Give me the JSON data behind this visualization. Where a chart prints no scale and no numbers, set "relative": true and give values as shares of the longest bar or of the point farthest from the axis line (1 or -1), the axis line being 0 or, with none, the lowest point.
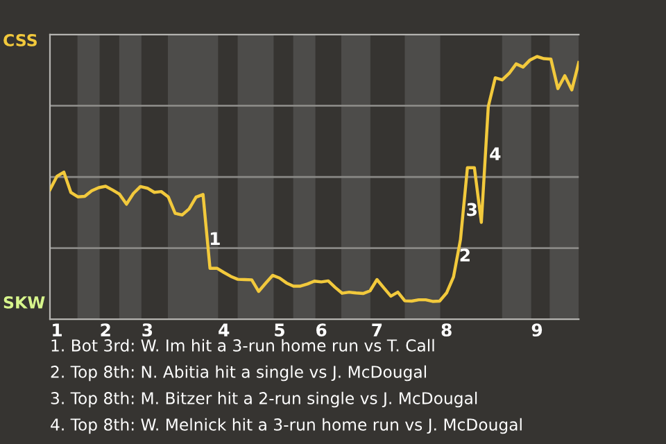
{
  "chart_data": {
    "type": "line",
    "relative": true,
    "categories": [
      null,
      "1",
      null,
      null,
      null,
      null,
      null,
      null,
      "2",
      null,
      null,
      null,
      null,
      null,
      "3",
      null,
      null,
      null,
      null,
      null,
      null,
      null,
      null,
      null,
      null,
      "4",
      null,
      null,
      null,
      null,
      null,
      null,
      null,
      "5",
      null,
      null,
      null,
      null,
      null,
      "6",
      null,
      null,
      null,
      null,
      null,
      null,
      null,
      "7",
      null,
      null,
      null,
      null,
      null,
      null,
      null,
      null,
      null,
      "8",
      null,
      null,
      null,
      null,
      null,
      null,
      null,
      null,
      null,
      null,
      null,
      null,
      "9",
      null,
      null,
      null,
      null,
      null,
      null
    ],
    "series": [
      {
        "color": "#f2c93c",
        "values": [
          0.493,
          0.544,
          0.56,
          0.483,
          0.466,
          0.468,
          0.489,
          0.501,
          0.506,
          0.492,
          0.476,
          0.438,
          0.479,
          0.505,
          0.499,
          0.483,
          0.486,
          0.466,
          0.403,
          0.397,
          0.42,
          0.465,
          0.475,
          0.194,
          0.194,
          0.178,
          0.163,
          0.152,
          0.151,
          0.15,
          0.106,
          0.137,
          0.167,
          0.157,
          0.138,
          0.126,
          0.126,
          0.134,
          0.145,
          0.142,
          0.146,
          0.121,
          0.099,
          0.103,
          0.1,
          0.098,
          0.108,
          0.151,
          0.119,
          0.088,
          0.103,
          0.07,
          0.069,
          0.074,
          0.074,
          0.068,
          0.069,
          0.1,
          0.161,
          0.303,
          0.577,
          0.577,
          0.369,
          0.81,
          0.919,
          0.911,
          0.936,
          0.972,
          0.96,
          0.987,
          1,
          0.992,
          0.99,
          0.878,
          0.927,
          0.873,
          0.977
        ]
      }
    ],
    "grid": "y",
    "annotations": [
      "CSS",
      "SKW",
      "1",
      "2",
      "3",
      "4",
      "1. Bot 3rd: W. Im hit a 3-run home run vs T. Call",
      "2. Top 8th: N. Abitia hit a single vs J. McDougal",
      "3. Top 8th: M. Bitzer hit a 2-run single vs J. McDougal",
      "4. Top 8th: W. Melnick hit a 3-run home run vs J. McDougal"
    ],
    "line_style": "solid"
  }
}
